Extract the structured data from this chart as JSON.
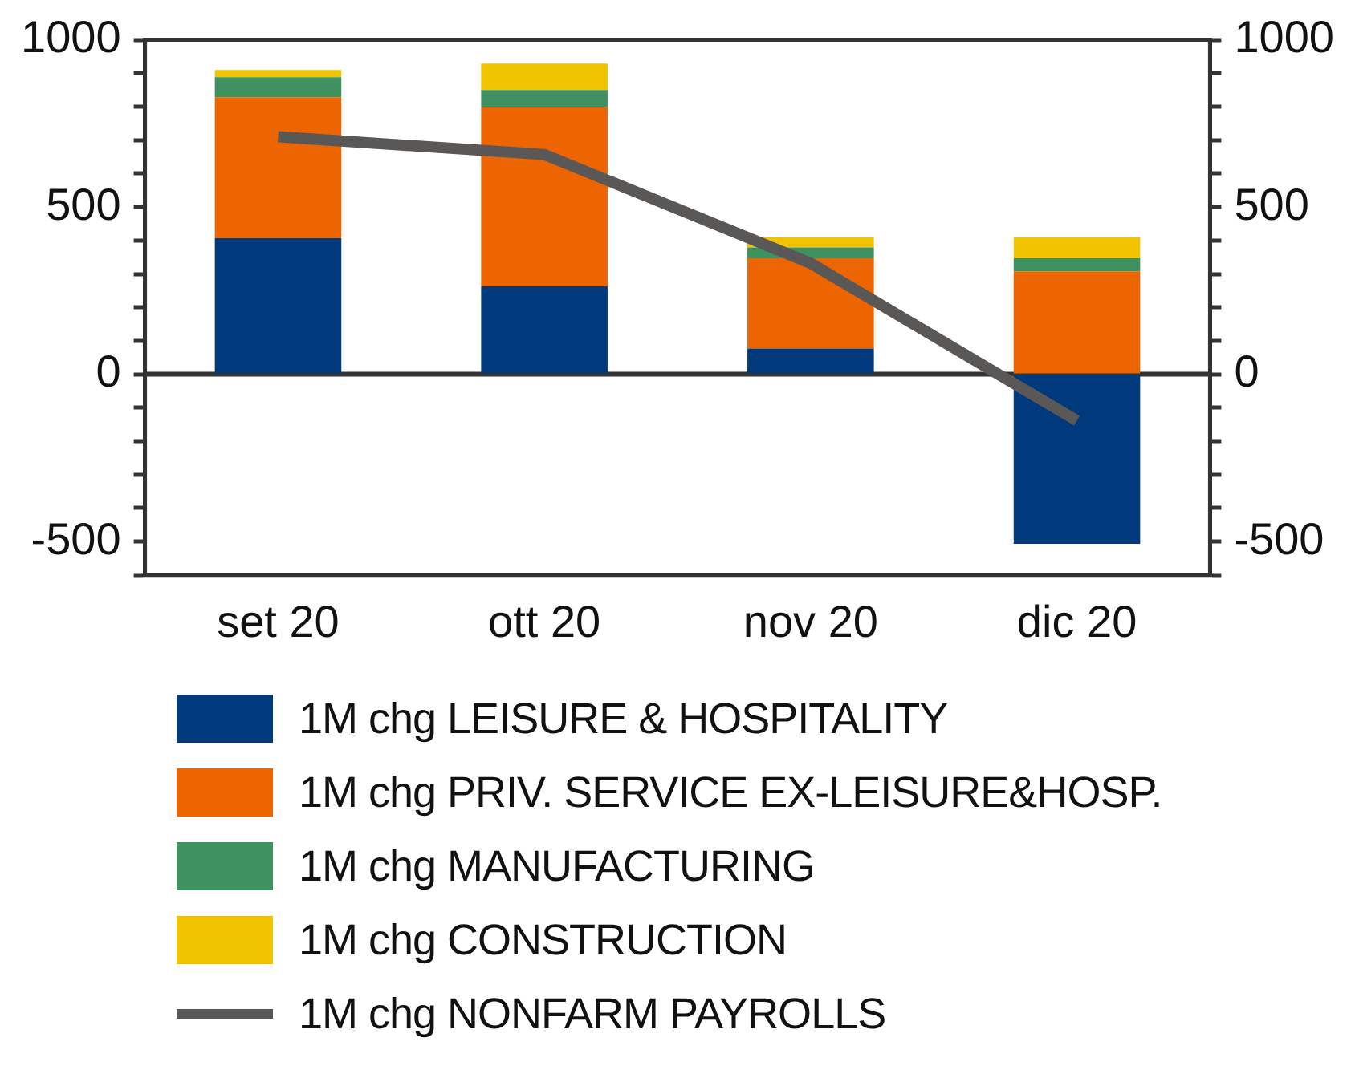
{
  "chart_data": {
    "type": "bar",
    "stacked": true,
    "categories": [
      "set 20",
      "ott 20",
      "nov 20",
      "dic 20"
    ],
    "series": [
      {
        "name": "1M chg LEISURE & HOSPITALITY",
        "color": "#003a7d",
        "values": [
          407,
          263,
          77,
          -507
        ]
      },
      {
        "name": "1M chg PRIV. SERVICE EX-LEISURE&HOSP.",
        "color": "#ec6500",
        "values": [
          421,
          535,
          270,
          308
        ]
      },
      {
        "name": "1M chg MANUFACTURING",
        "color": "#3f9160",
        "values": [
          60,
          52,
          32,
          39
        ]
      },
      {
        "name": "1M chg CONSTRUCTION",
        "color": "#efc300",
        "values": [
          22,
          79,
          30,
          62
        ]
      },
      {
        "name": "1M chg NONFARM PAYROLLS",
        "type": "line",
        "color": "#5a5857",
        "values": [
          710,
          657,
          332,
          -139
        ]
      }
    ],
    "ylim": [
      -600,
      1000
    ],
    "yticks": [
      {
        "value": -600,
        "label": null
      },
      -500,
      {
        "value": -400,
        "label": null
      },
      {
        "value": -300,
        "label": null
      },
      {
        "value": -200,
        "label": null
      },
      {
        "value": -100,
        "label": null
      },
      0,
      {
        "value": 100,
        "label": null
      },
      {
        "value": 200,
        "label": null
      },
      {
        "value": 300,
        "label": null
      },
      {
        "value": 400,
        "label": null
      },
      500,
      {
        "value": 600,
        "label": null
      },
      {
        "value": 700,
        "label": null
      },
      {
        "value": 800,
        "label": null
      },
      {
        "value": 900,
        "label": null
      },
      1000
    ],
    "y2lim": [
      -600,
      1000
    ],
    "y2ticks": [
      {
        "value": -600,
        "label": null
      },
      -500,
      {
        "value": -400,
        "label": null
      },
      {
        "value": -300,
        "label": null
      },
      {
        "value": -200,
        "label": null
      },
      {
        "value": -100,
        "label": null
      },
      0,
      {
        "value": 100,
        "label": null
      },
      {
        "value": 200,
        "label": null
      },
      {
        "value": 300,
        "label": null
      },
      {
        "value": 400,
        "label": null
      },
      500,
      {
        "value": 600,
        "label": null
      },
      {
        "value": 700,
        "label": null
      },
      {
        "value": 800,
        "label": null
      },
      {
        "value": 900,
        "label": null
      },
      1000
    ],
    "ref_lines": [
      {
        "axis": "y",
        "value": 0,
        "color": "#333333",
        "line_style": "solid"
      }
    ],
    "grid": false,
    "legend": "bottom",
    "marker": "none",
    "line_style": "solid"
  }
}
